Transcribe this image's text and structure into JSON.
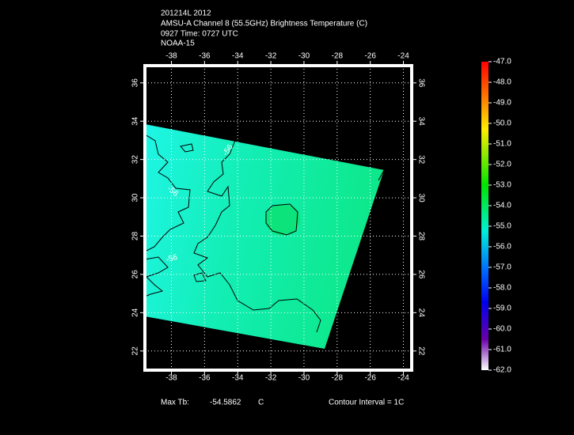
{
  "header": {
    "lines": [
      "201214L 2012",
      "AMSU-A Channel 8 (55.5GHz) Brightness Temperature (C)",
      "0927 Time: 0727 UTC",
      "NOAA-15"
    ]
  },
  "map": {
    "xlim": [
      -39.6,
      -23.5
    ],
    "ylim": [
      21,
      36.9
    ],
    "xticks": [
      -38,
      -36,
      -34,
      -32,
      -30,
      -28,
      -26,
      -24
    ],
    "yticks": [
      22,
      24,
      26,
      28,
      30,
      32,
      34,
      36
    ],
    "contour_labels": [
      -56,
      -56,
      -56
    ]
  },
  "colorbar": {
    "clim": [
      -62,
      -47
    ],
    "ticks": [
      {
        "value": -47,
        "label": "-47.0"
      },
      {
        "value": -48,
        "label": "-48.0"
      },
      {
        "value": -49,
        "label": "-49.0"
      },
      {
        "value": -50,
        "label": "-50.0"
      },
      {
        "value": -51,
        "label": "-51.0"
      },
      {
        "value": -52,
        "label": "-52.0"
      },
      {
        "value": -53,
        "label": "-53.0"
      },
      {
        "value": -54,
        "label": "-54.0"
      },
      {
        "value": -55,
        "label": "-55.0"
      },
      {
        "value": -56,
        "label": "-56.0"
      },
      {
        "value": -57,
        "label": "-57.0"
      },
      {
        "value": -58,
        "label": "-58.0"
      },
      {
        "value": -59,
        "label": "-59.0"
      },
      {
        "value": -60,
        "label": "-60.0"
      },
      {
        "value": -61,
        "label": "-61.0"
      },
      {
        "value": -62,
        "label": "-62.0"
      }
    ]
  },
  "footer": {
    "max_label": "Max Tb:",
    "max_value": -54.5862,
    "max_unit": "C",
    "contour": "Contour Interval = 1C"
  }
}
